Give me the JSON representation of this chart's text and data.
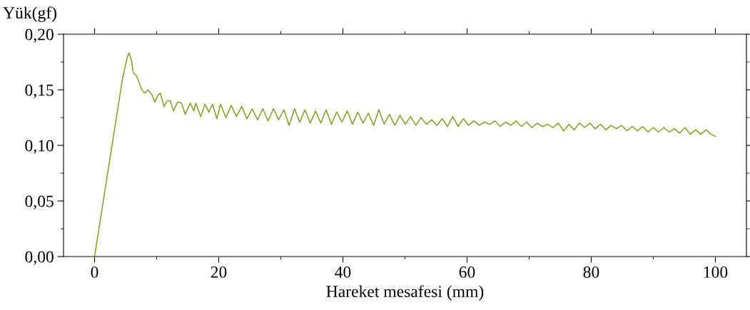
{
  "chart_data": {
    "type": "line",
    "xlabel": "Hareket mesafesi (mm)",
    "ylabel": "Yük(gf)",
    "xlim": [
      -5,
      105
    ],
    "xticks": [
      0,
      20,
      40,
      60,
      80,
      100
    ],
    "ylim": [
      0,
      0.2
    ],
    "yticks": [
      {
        "value": 0,
        "label": "0,00"
      },
      {
        "value": 0.05,
        "label": "0,05"
      },
      {
        "value": 0.1,
        "label": "0,10"
      },
      {
        "value": 0.15,
        "label": "0,15"
      },
      {
        "value": 0.2,
        "label": "0,20"
      }
    ],
    "grid": false,
    "legend": false,
    "marker": "none",
    "line_style": "solid",
    "series": [
      {
        "color": "#8c9a2a",
        "x": [
          0,
          4.5,
          5.3,
          5.6,
          6.0,
          6.2,
          6.8,
          7.6,
          8.1,
          8.6,
          9.3,
          9.7,
          10.2,
          10.6,
          11.2,
          11.7,
          12.2,
          12.7,
          13.4,
          14.0,
          14.6,
          15.4,
          16.0,
          16.3,
          17.1,
          17.8,
          18.4,
          19.0,
          19.7,
          20.3,
          21.15,
          22.0,
          22.85,
          23.7,
          24.55,
          25.4,
          26.25,
          27.1,
          27.95,
          28.8,
          29.65,
          30.5,
          31.35,
          32.2,
          33.05,
          33.9,
          34.75,
          35.6,
          36.45,
          37.3,
          38.15,
          39.0,
          39.85,
          40.7,
          41.55,
          42.4,
          43.25,
          44.1,
          44.95,
          45.8,
          46.65,
          47.5,
          48.35,
          49.2,
          50.05,
          50.9,
          51.75,
          52.6,
          53.45,
          54.3,
          55.15,
          56.0,
          56.85,
          57.7,
          58.55,
          59.4,
          60.25,
          61.1,
          61.95,
          62.8,
          63.65,
          64.5,
          65.35,
          66.2,
          67.05,
          67.9,
          68.75,
          69.6,
          70.45,
          71.3,
          72.15,
          73.0,
          73.85,
          74.7,
          75.55,
          76.4,
          77.25,
          78.1,
          78.95,
          79.8,
          80.65,
          81.5,
          82.35,
          83.2,
          84.05,
          84.9,
          85.75,
          86.6,
          87.45,
          88.3,
          89.15,
          90.0,
          90.85,
          91.7,
          92.55,
          93.4,
          94.25,
          95.1,
          95.95,
          96.8,
          97.65,
          98.5,
          99.3,
          100.0
        ],
        "values": [
          0,
          0.16,
          0.18,
          0.183,
          0.175,
          0.166,
          0.162,
          0.15,
          0.147,
          0.15,
          0.145,
          0.139,
          0.145,
          0.147,
          0.135,
          0.14,
          0.14,
          0.131,
          0.139,
          0.138,
          0.128,
          0.138,
          0.131,
          0.138,
          0.126,
          0.137,
          0.13,
          0.137,
          0.124,
          0.137,
          0.125,
          0.136,
          0.126,
          0.135,
          0.124,
          0.133,
          0.123,
          0.133,
          0.122,
          0.133,
          0.123,
          0.132,
          0.118,
          0.133,
          0.121,
          0.132,
          0.12,
          0.131,
          0.12,
          0.132,
          0.119,
          0.13,
          0.121,
          0.131,
          0.119,
          0.13,
          0.12,
          0.129,
          0.118,
          0.132,
          0.119,
          0.128,
          0.118,
          0.127,
          0.119,
          0.126,
          0.118,
          0.125,
          0.119,
          0.123,
          0.118,
          0.124,
          0.117,
          0.126,
          0.117,
          0.124,
          0.118,
          0.122,
          0.118,
          0.121,
          0.119,
          0.122,
          0.117,
          0.121,
          0.118,
          0.122,
          0.117,
          0.121,
          0.116,
          0.12,
          0.117,
          0.119,
          0.116,
          0.12,
          0.113,
          0.119,
          0.114,
          0.12,
          0.116,
          0.12,
          0.115,
          0.119,
          0.114,
          0.118,
          0.115,
          0.118,
          0.113,
          0.117,
          0.113,
          0.117,
          0.112,
          0.116,
          0.112,
          0.116,
          0.112,
          0.115,
          0.111,
          0.116,
          0.11,
          0.114,
          0.11,
          0.114,
          0.11,
          0.108
        ]
      }
    ]
  }
}
